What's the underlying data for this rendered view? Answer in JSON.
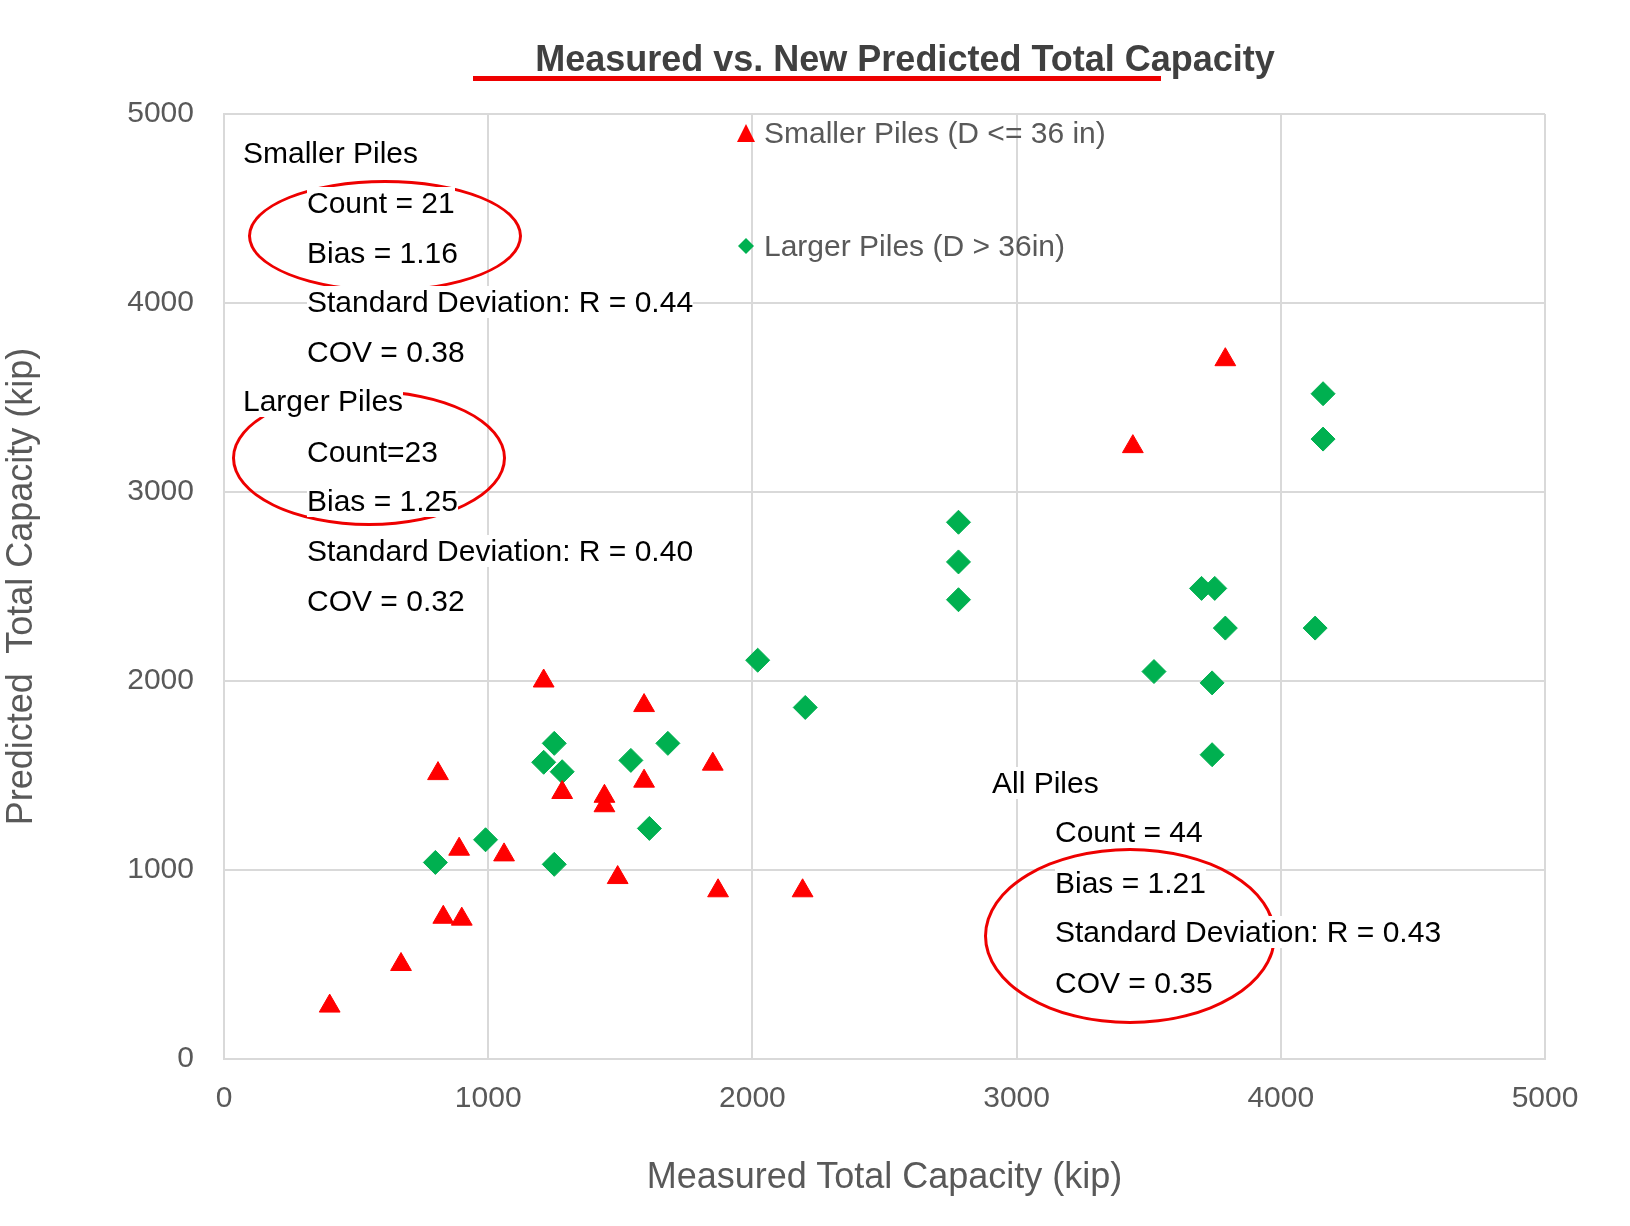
{
  "chart_data": {
    "type": "scatter",
    "title": "Measured vs. New Predicted Total Capacity",
    "xlabel": "Measured Total Capacity (kip)",
    "ylabel": "Predicted  Total Capacity (kip)",
    "xlim": [
      0,
      5000
    ],
    "ylim": [
      0,
      5000
    ],
    "xticks": [
      0,
      1000,
      2000,
      3000,
      4000,
      5000
    ],
    "yticks": [
      0,
      1000,
      2000,
      3000,
      4000,
      5000
    ],
    "grid": true,
    "legend": "top",
    "series": [
      {
        "name": "Smaller Piles (D <= 36 in)",
        "color": "#ff0000",
        "marker": "triangle",
        "x": [
          400,
          670,
          810,
          830,
          890,
          900,
          1060,
          1210,
          1280,
          1440,
          1440,
          1490,
          1590,
          1590,
          1850,
          1870,
          2190,
          3440,
          3790
        ],
        "values": [
          280,
          500,
          1510,
          750,
          1110,
          740,
          1080,
          2000,
          1410,
          1390,
          1340,
          960,
          1870,
          1470,
          1560,
          890,
          890,
          3240,
          3700
        ]
      },
      {
        "name": "Larger Piles (D > 36in)",
        "color": "#00b050",
        "marker": "diamond",
        "x": [
          800,
          990,
          1210,
          1250,
          1250,
          1280,
          1540,
          1610,
          1680,
          2020,
          2200,
          2780,
          2780,
          2780,
          3520,
          3700,
          3750,
          3740,
          3740,
          3790,
          4130,
          4160,
          4160
        ],
        "values": [
          1040,
          1160,
          1570,
          1670,
          1030,
          1520,
          1580,
          1220,
          1670,
          2110,
          1860,
          2840,
          2630,
          2430,
          2050,
          2490,
          2490,
          1990,
          1610,
          2280,
          2280,
          3520,
          3280
        ]
      }
    ],
    "annotations": [
      "Smaller Piles",
      "Count = 21",
      "Bias = 1.16",
      "Standard Deviation: R = 0.44",
      "COV = 0.38",
      "Larger Piles",
      "Count=23",
      "Bias = 1.25",
      "Standard Deviation: R = 0.40",
      "COV = 0.32",
      "All Piles",
      "Count = 44",
      "Bias = 1.21",
      "Standard Deviation: R = 0.43",
      "COV = 0.35"
    ]
  }
}
